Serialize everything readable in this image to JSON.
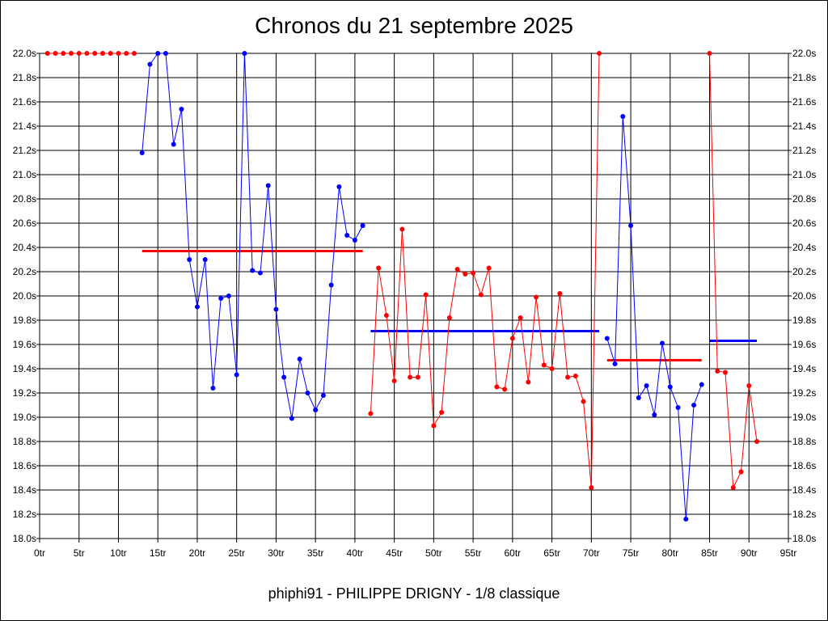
{
  "chart_data": {
    "type": "line",
    "title": "Chronos du 21 septembre 2025",
    "footer": "phiphi91 - PHILIPPE DRIGNY - 1/8 classique",
    "x_ticks": [
      {
        "value": 0,
        "label": "0tr"
      },
      {
        "value": 5,
        "label": "5tr"
      },
      {
        "value": 10,
        "label": "10tr"
      },
      {
        "value": 15,
        "label": "15tr"
      },
      {
        "value": 20,
        "label": "20tr"
      },
      {
        "value": 25,
        "label": "25tr"
      },
      {
        "value": 30,
        "label": "30tr"
      },
      {
        "value": 35,
        "label": "35tr"
      },
      {
        "value": 40,
        "label": "40tr"
      },
      {
        "value": 45,
        "label": "45tr"
      },
      {
        "value": 50,
        "label": "50tr"
      },
      {
        "value": 55,
        "label": "55tr"
      },
      {
        "value": 60,
        "label": "60tr"
      },
      {
        "value": 65,
        "label": "65tr"
      },
      {
        "value": 70,
        "label": "70tr"
      },
      {
        "value": 75,
        "label": "75tr"
      },
      {
        "value": 80,
        "label": "80tr"
      },
      {
        "value": 85,
        "label": "85tr"
      },
      {
        "value": 90,
        "label": "90tr"
      },
      {
        "value": 95,
        "label": "95tr"
      }
    ],
    "y_ticks": [
      {
        "value": 18.0,
        "label": "18.0s"
      },
      {
        "value": 18.2,
        "label": "18.2s"
      },
      {
        "value": 18.4,
        "label": "18.4s"
      },
      {
        "value": 18.6,
        "label": "18.6s"
      },
      {
        "value": 18.8,
        "label": "18.8s"
      },
      {
        "value": 19.0,
        "label": "19.0s"
      },
      {
        "value": 19.2,
        "label": "19.2s"
      },
      {
        "value": 19.4,
        "label": "19.4s"
      },
      {
        "value": 19.6,
        "label": "19.6s"
      },
      {
        "value": 19.8,
        "label": "19.8s"
      },
      {
        "value": 20.0,
        "label": "20.0s"
      },
      {
        "value": 20.2,
        "label": "20.2s"
      },
      {
        "value": 20.4,
        "label": "20.4s"
      },
      {
        "value": 20.6,
        "label": "20.6s"
      },
      {
        "value": 20.8,
        "label": "20.8s"
      },
      {
        "value": 21.0,
        "label": "21.0s"
      },
      {
        "value": 21.2,
        "label": "21.2s"
      },
      {
        "value": 21.4,
        "label": "21.4s"
      },
      {
        "value": 21.6,
        "label": "21.6s"
      },
      {
        "value": 21.8,
        "label": "21.8s"
      },
      {
        "value": 22.0,
        "label": "22.0s"
      }
    ],
    "xlim": [
      0,
      95
    ],
    "ylim": [
      18.0,
      22.0
    ],
    "grid": true,
    "series": [
      {
        "color": "#ff0000",
        "x": [
          1,
          2,
          3,
          4,
          5,
          6,
          7,
          8,
          9,
          10,
          11,
          12
        ],
        "y": [
          22.0,
          22.0,
          22.0,
          22.0,
          22.0,
          22.0,
          22.0,
          22.0,
          22.0,
          22.0,
          22.0,
          22.0
        ]
      },
      {
        "color": "#0000ff",
        "x": [
          13,
          14,
          15,
          16,
          17,
          18,
          19,
          20,
          21,
          22,
          23,
          24,
          25,
          26,
          27,
          28,
          29,
          30,
          31,
          32,
          33,
          34,
          35,
          36,
          37,
          38,
          39,
          40,
          41
        ],
        "y": [
          21.18,
          21.91,
          22.0,
          22.0,
          21.25,
          21.54,
          20.3,
          19.91,
          20.3,
          19.24,
          19.98,
          20.0,
          19.35,
          22.0,
          20.21,
          20.19,
          20.91,
          19.89,
          19.33,
          18.99,
          19.48,
          19.2,
          19.06,
          19.18,
          20.09,
          20.9,
          20.5,
          20.46,
          20.58
        ]
      },
      {
        "color": "#ff0000",
        "x": [
          42,
          43,
          44,
          45,
          46,
          47,
          48,
          49,
          50,
          51,
          52,
          53,
          54,
          55,
          56,
          57,
          58,
          59,
          60,
          61,
          62,
          63,
          64,
          65,
          66,
          67,
          68,
          69,
          70,
          71
        ],
        "y": [
          19.03,
          20.23,
          19.84,
          19.3,
          20.55,
          19.33,
          19.33,
          20.01,
          18.93,
          19.04,
          19.82,
          20.22,
          20.18,
          20.19,
          20.01,
          20.23,
          19.25,
          19.23,
          19.65,
          19.82,
          19.29,
          19.99,
          19.43,
          19.4,
          20.02,
          19.33,
          19.34,
          19.13,
          18.42,
          22.0
        ]
      },
      {
        "color": "#0000ff",
        "x": [
          72,
          73,
          74,
          75,
          76,
          77,
          78,
          79,
          80,
          81,
          82,
          83,
          84
        ],
        "y": [
          19.65,
          19.44,
          21.48,
          20.58,
          19.16,
          19.26,
          19.02,
          19.61,
          19.25,
          19.08,
          18.16,
          19.1,
          19.27
        ]
      },
      {
        "color": "#ff0000",
        "x": [
          85,
          86,
          87,
          88,
          89,
          90,
          91
        ],
        "y": [
          22.0,
          19.38,
          19.37,
          18.42,
          18.55,
          19.26,
          18.8
        ]
      }
    ],
    "averages": [
      {
        "color": "#ff0000",
        "x_start": 13,
        "x_end": 41,
        "y": 20.37
      },
      {
        "color": "#0000ff",
        "x_start": 42,
        "x_end": 71,
        "y": 19.71
      },
      {
        "color": "#ff0000",
        "x_start": 72,
        "x_end": 84,
        "y": 19.47
      },
      {
        "color": "#0000ff",
        "x_start": 85,
        "x_end": 91,
        "y": 19.63
      }
    ]
  }
}
